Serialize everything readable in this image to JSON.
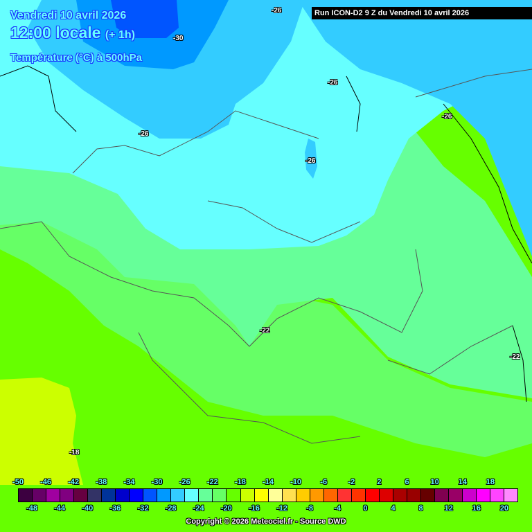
{
  "header": {
    "date": "Vendredi 10 avril 2026",
    "time": "12:00 locale",
    "offset": "(+ 1h)",
    "parameter": "Température (°C) à 500hPa",
    "run": "Run ICON-D2 9 Z du Vendredi 10 avril 2026"
  },
  "isolines": [
    {
      "label": "-30"
    },
    {
      "label": "-26"
    },
    {
      "label": "-26"
    },
    {
      "label": "-26"
    },
    {
      "label": "-26"
    },
    {
      "label": "-26"
    },
    {
      "label": "-22"
    },
    {
      "label": "-22"
    },
    {
      "label": "-18"
    }
  ],
  "legend": {
    "top_labels": [
      "-50",
      "-46",
      "-42",
      "-38",
      "-34",
      "-30",
      "-26",
      "-22",
      "-18",
      "-14",
      "-10",
      "-6",
      "-2",
      "2",
      "6",
      "10",
      "14",
      "18"
    ],
    "bottom_labels": [
      "-48",
      "-44",
      "-40",
      "-36",
      "-32",
      "-28",
      "-24",
      "-20",
      "-16",
      "-12",
      "-8",
      "-4",
      "0",
      "4",
      "8",
      "12",
      "16",
      "20"
    ],
    "colors": [
      "#3c0040",
      "#660066",
      "#a000a0",
      "#800080",
      "#660040",
      "#333366",
      "#003399",
      "#0000cc",
      "#0000ff",
      "#0055ff",
      "#0099ff",
      "#33ccff",
      "#66ffff",
      "#66ff99",
      "#66ff66",
      "#66ff00",
      "#ccff00",
      "#ffff00",
      "#ffff99",
      "#ffe050",
      "#ffcc00",
      "#ff9900",
      "#ff6600",
      "#ff3333",
      "#ff3300",
      "#ff0000",
      "#dd0000",
      "#aa0000",
      "#990000",
      "#660000",
      "#800050",
      "#990066",
      "#cc00cc",
      "#ff00ff",
      "#ff44ff",
      "#ff88ff"
    ]
  },
  "copyright": "Copyright © 2026 Meteociel.fr - Source DWD"
}
